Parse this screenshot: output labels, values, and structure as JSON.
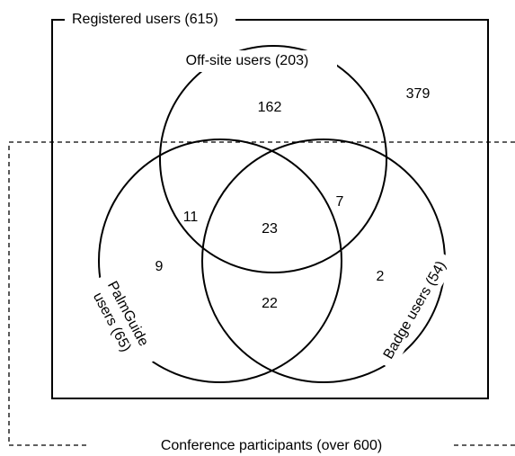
{
  "registered": {
    "label": "Registered users (615)"
  },
  "conference": {
    "label": "Conference participants (over 600)"
  },
  "sets": [
    {
      "label": "Off-site users (203)"
    },
    {
      "label_lines": [
        "PalmGuide",
        "users (65)"
      ]
    },
    {
      "label": "Badge users (54)"
    }
  ],
  "regions": {
    "offsite_only": "162",
    "registered_only": "379",
    "offsite_palm": "11",
    "offsite_badge": "7",
    "all_three": "23",
    "palm_only": "9",
    "badge_only": "2",
    "palm_badge": "22"
  }
}
